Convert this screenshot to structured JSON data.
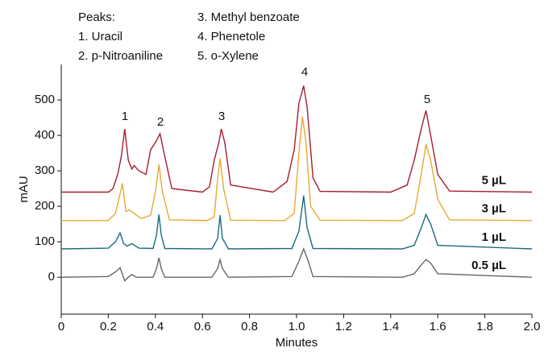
{
  "chart_data": {
    "type": "line",
    "x_label": "Minutes",
    "y_label": "mAU",
    "xlim": [
      0,
      2
    ],
    "xticks": [
      0,
      0.2,
      0.4,
      0.6,
      0.8,
      {
        "value": 1,
        "label": "1.0"
      },
      1.2,
      1.4,
      1.6,
      1.8,
      {
        "value": 2,
        "label": "2.0"
      }
    ],
    "ylim": [
      -104,
      600
    ],
    "yticks": [
      0,
      100,
      200,
      300,
      400,
      500
    ],
    "grid": false,
    "peaks_legend": {
      "title": "Peaks:",
      "items": [
        "1. Uracil",
        "2. p-Nitroaniline",
        "3. Methyl benzoate",
        "4. Phenetole",
        "5. o-Xylene"
      ]
    },
    "peak_labels": [
      "1",
      "2",
      "3",
      "4",
      "5"
    ],
    "series": [
      {
        "name": "5 µL",
        "color": "#a51c30",
        "x": [
          0,
          0.2,
          0.22,
          0.24,
          0.255,
          0.27,
          0.285,
          0.3,
          0.31,
          0.33,
          0.36,
          0.38,
          0.4,
          0.42,
          0.44,
          0.47,
          0.6,
          0.63,
          0.65,
          0.67,
          0.68,
          0.695,
          0.72,
          0.9,
          0.96,
          0.99,
          1.01,
          1.03,
          1.045,
          1.07,
          1.1,
          1.4,
          1.47,
          1.5,
          1.53,
          1.55,
          1.57,
          1.6,
          1.65,
          2.0
        ],
        "values": [
          240,
          240,
          250,
          290,
          340,
          418,
          330,
          305,
          315,
          300,
          290,
          360,
          380,
          405,
          340,
          250,
          240,
          255,
          330,
          380,
          418,
          380,
          260,
          240,
          270,
          360,
          490,
          540,
          480,
          280,
          242,
          240,
          260,
          330,
          420,
          470,
          400,
          290,
          243,
          240
        ]
      },
      {
        "name": "3 µL",
        "color": "#e8a932",
        "x": [
          0,
          0.2,
          0.23,
          0.25,
          0.26,
          0.275,
          0.29,
          0.31,
          0.34,
          0.38,
          0.4,
          0.415,
          0.43,
          0.46,
          0.62,
          0.65,
          0.665,
          0.675,
          0.69,
          0.72,
          0.95,
          0.99,
          1.01,
          1.025,
          1.04,
          1.06,
          1.1,
          1.45,
          1.5,
          1.53,
          1.55,
          1.57,
          1.6,
          1.65,
          2.0
        ],
        "values": [
          160,
          160,
          180,
          235,
          265,
          185,
          190,
          180,
          165,
          175,
          240,
          318,
          240,
          162,
          160,
          170,
          280,
          335,
          250,
          161,
          160,
          180,
          350,
          453,
          380,
          200,
          161,
          160,
          180,
          290,
          375,
          330,
          220,
          162,
          160
        ]
      },
      {
        "name": "1 µL",
        "color": "#1a6a7e",
        "x": [
          0,
          0.2,
          0.23,
          0.25,
          0.265,
          0.28,
          0.3,
          0.33,
          0.39,
          0.405,
          0.415,
          0.425,
          0.44,
          0.64,
          0.665,
          0.675,
          0.685,
          0.71,
          0.98,
          1.01,
          1.03,
          1.045,
          1.07,
          1.45,
          1.5,
          1.53,
          1.55,
          1.57,
          1.6,
          2.0
        ],
        "values": [
          80,
          82,
          100,
          125,
          95,
          88,
          95,
          82,
          81,
          120,
          177,
          120,
          81,
          80,
          110,
          175,
          110,
          80,
          81,
          130,
          230,
          140,
          81,
          80,
          90,
          140,
          177,
          150,
          90,
          80
        ]
      },
      {
        "name": "0.5 µL",
        "color": "#666666",
        "x": [
          0,
          0.2,
          0.23,
          0.25,
          0.27,
          0.285,
          0.3,
          0.32,
          0.39,
          0.405,
          0.415,
          0.425,
          0.44,
          0.64,
          0.665,
          0.675,
          0.685,
          0.71,
          0.98,
          1.01,
          1.03,
          1.05,
          1.07,
          1.45,
          1.5,
          1.53,
          1.55,
          1.57,
          1.6,
          2.0
        ],
        "values": [
          0,
          2,
          15,
          27,
          -10,
          0,
          8,
          0,
          0,
          25,
          55,
          25,
          0,
          0,
          25,
          50,
          25,
          0,
          2,
          45,
          80,
          45,
          2,
          0,
          10,
          35,
          50,
          40,
          10,
          0
        ]
      }
    ]
  }
}
